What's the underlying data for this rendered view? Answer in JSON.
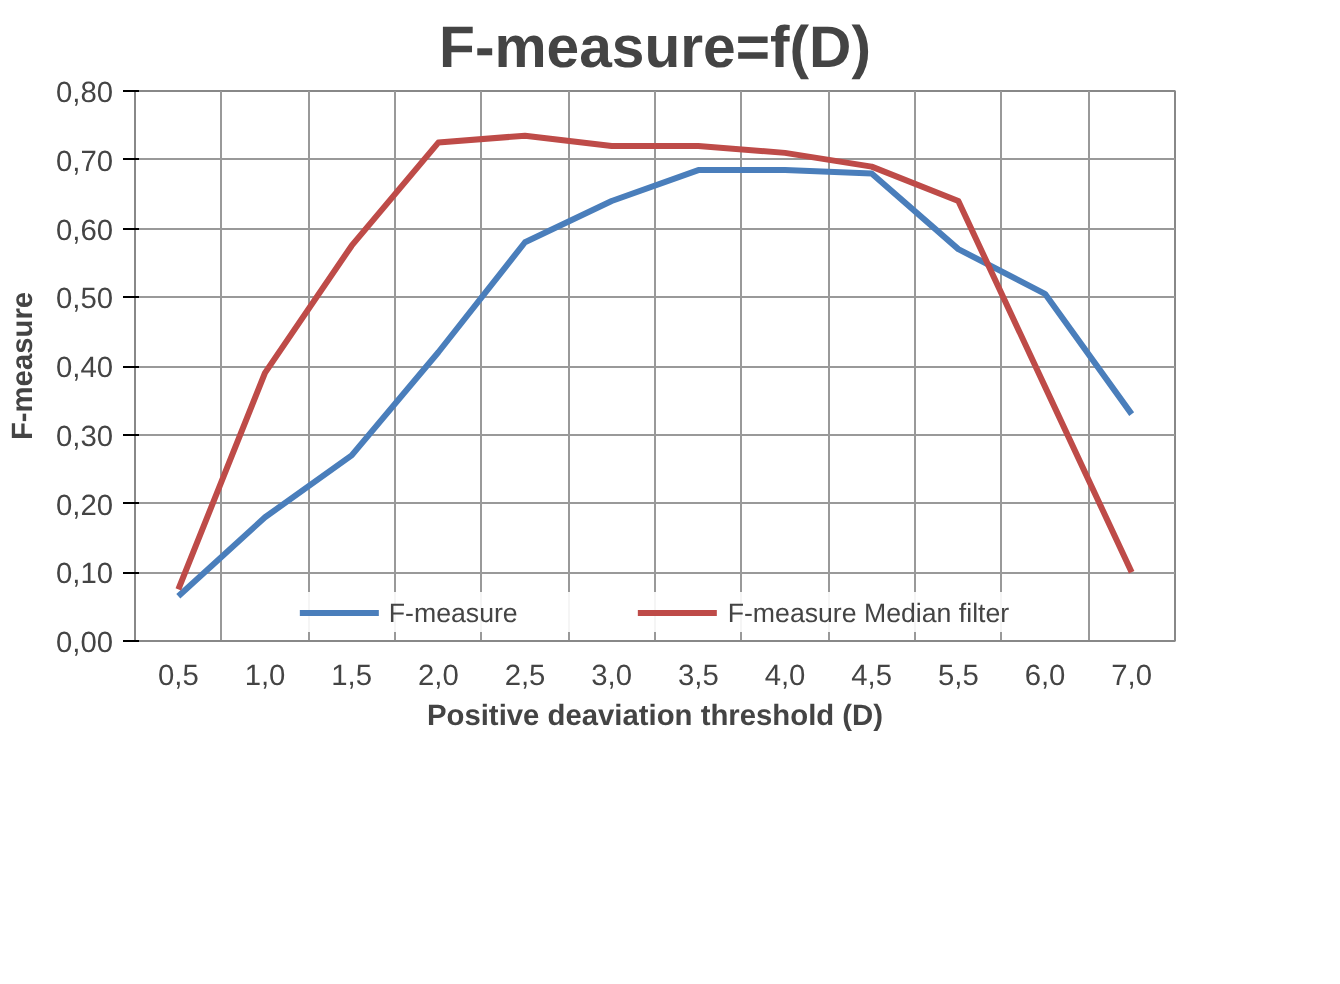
{
  "chart_data": {
    "type": "line",
    "title": "F-measure=f(D)",
    "xlabel": "Positive deaviation threshold (D)",
    "ylabel": "F-measure",
    "categories": [
      "0,5",
      "1,0",
      "1,5",
      "2,0",
      "2,5",
      "3,0",
      "3,5",
      "4,0",
      "4,5",
      "5,5",
      "6,0",
      "7,0"
    ],
    "series": [
      {
        "name": "F-measure",
        "color": "#4a7ebb",
        "values": [
          0.065,
          0.18,
          0.27,
          0.42,
          0.58,
          0.64,
          0.685,
          0.685,
          0.68,
          0.57,
          0.505,
          0.33
        ]
      },
      {
        "name": "F-measure Median filter",
        "color": "#be4b48",
        "values": [
          0.075,
          0.39,
          0.575,
          0.725,
          0.735,
          0.72,
          0.72,
          0.71,
          0.69,
          0.64,
          0.37,
          0.1
        ]
      }
    ],
    "ylim": [
      0,
      0.8
    ],
    "yticks": [
      {
        "value": 0,
        "label": "0,00"
      },
      {
        "value": 0.1,
        "label": "0,10"
      },
      {
        "value": 0.2,
        "label": "0,20"
      },
      {
        "value": 0.3,
        "label": "0,30"
      },
      {
        "value": 0.4,
        "label": "0,40"
      },
      {
        "value": 0.5,
        "label": "0,50"
      },
      {
        "value": 0.6,
        "label": "0,60"
      },
      {
        "value": 0.7,
        "label": "0,70"
      },
      {
        "value": 0.8,
        "label": "0,80"
      }
    ],
    "grid": true,
    "legend": "bottom",
    "marker": "none",
    "line_style": "solid"
  }
}
